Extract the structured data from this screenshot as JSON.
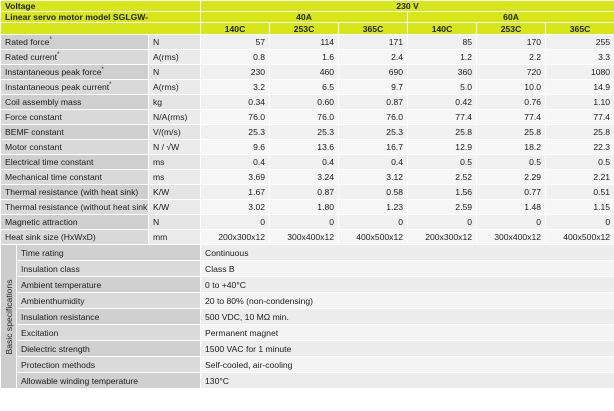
{
  "header": {
    "voltage_label": "Voltage",
    "voltage_value": "230 V",
    "model_label": "Linear servo motor model SGLGW-",
    "groups": [
      "40A",
      "60A"
    ],
    "columns": [
      "140C",
      "253C",
      "365C",
      "140C",
      "253C",
      "365C"
    ]
  },
  "rows": [
    {
      "param": "Rated force",
      "mark": "*",
      "unit": "N",
      "values": [
        "57",
        "114",
        "171",
        "85",
        "170",
        "255"
      ]
    },
    {
      "param": "Rated current",
      "mark": "*",
      "unit": "A(rms)",
      "values": [
        "0.8",
        "1.6",
        "2.4",
        "1.2",
        "2.2",
        "3.3"
      ]
    },
    {
      "param": "Instantaneous peak force",
      "mark": "*",
      "unit": "N",
      "values": [
        "230",
        "460",
        "690",
        "360",
        "720",
        "1080"
      ]
    },
    {
      "param": "Instantaneous peak current",
      "mark": "*",
      "unit": "A(rms)",
      "values": [
        "3.2",
        "6.5",
        "9.7",
        "5.0",
        "10.0",
        "14.9"
      ]
    },
    {
      "param": "Coil assembly mass",
      "mark": "",
      "unit": "kg",
      "values": [
        "0.34",
        "0.60",
        "0.87",
        "0.42",
        "0.76",
        "1.10"
      ]
    },
    {
      "param": "Force constant",
      "mark": "",
      "unit": "N/A(rms)",
      "values": [
        "76.0",
        "76.0",
        "76.0",
        "77.4",
        "77.4",
        "77.4"
      ]
    },
    {
      "param": "BEMF constant",
      "mark": "",
      "unit": "V/(m/s)",
      "values": [
        "25.3",
        "25.3",
        "25.3",
        "25.8",
        "25.8",
        "25.8"
      ]
    },
    {
      "param": "Motor constant",
      "mark": "",
      "unit": "N / √W",
      "values": [
        "9.6",
        "13.6",
        "16.7",
        "12.9",
        "18.2",
        "22.3"
      ]
    },
    {
      "param": "Electrical time constant",
      "mark": "",
      "unit": "ms",
      "values": [
        "0.4",
        "0.4",
        "0.4",
        "0.5",
        "0.5",
        "0.5"
      ]
    },
    {
      "param": "Mechanical time constant",
      "mark": "",
      "unit": "ms",
      "values": [
        "3.69",
        "3.24",
        "3.12",
        "2.52",
        "2.29",
        "2.21"
      ]
    },
    {
      "param": "Thermal resistance (with heat sink)",
      "mark": "",
      "unit": "K/W",
      "values": [
        "1.67",
        "0.87",
        "0.58",
        "1.56",
        "0.77",
        "0.51"
      ]
    },
    {
      "param": "Thermal resistance (without heat sink)",
      "mark": "",
      "unit": "K/W",
      "values": [
        "3.02",
        "1.80",
        "1.23",
        "2.59",
        "1.48",
        "1.15"
      ]
    },
    {
      "param": "Magnetic attraction",
      "mark": "",
      "unit": "N",
      "values": [
        "0",
        "0",
        "0",
        "0",
        "0",
        "0"
      ]
    },
    {
      "param": "Heat sink size (HxWxD)",
      "mark": "",
      "unit": "mm",
      "values": [
        "200x300x12",
        "300x400x12",
        "400x500x12",
        "200x300x12",
        "300x400x12",
        "400x500x12"
      ]
    }
  ],
  "basic": {
    "title": "Basic specifications",
    "items": [
      {
        "label": "Time rating",
        "value": "Continuous"
      },
      {
        "label": "Insulation class",
        "value": "Class B"
      },
      {
        "label": "Ambient temperature",
        "value": "0 to +40°C"
      },
      {
        "label": "Ambienthumidity",
        "value": "20 to 80% (non-condensing)"
      },
      {
        "label": "Insulation resistance",
        "value": "500 VDC, 10 MΩ min."
      },
      {
        "label": "Excitation",
        "value": "Permanent magnet"
      },
      {
        "label": "Dielectric strength",
        "value": "1500 VAC for 1 minute"
      },
      {
        "label": "Protection methods",
        "value": "Self-cooled, air-cooling"
      },
      {
        "label": "Allowable winding temperature",
        "value": "130°C"
      }
    ]
  }
}
